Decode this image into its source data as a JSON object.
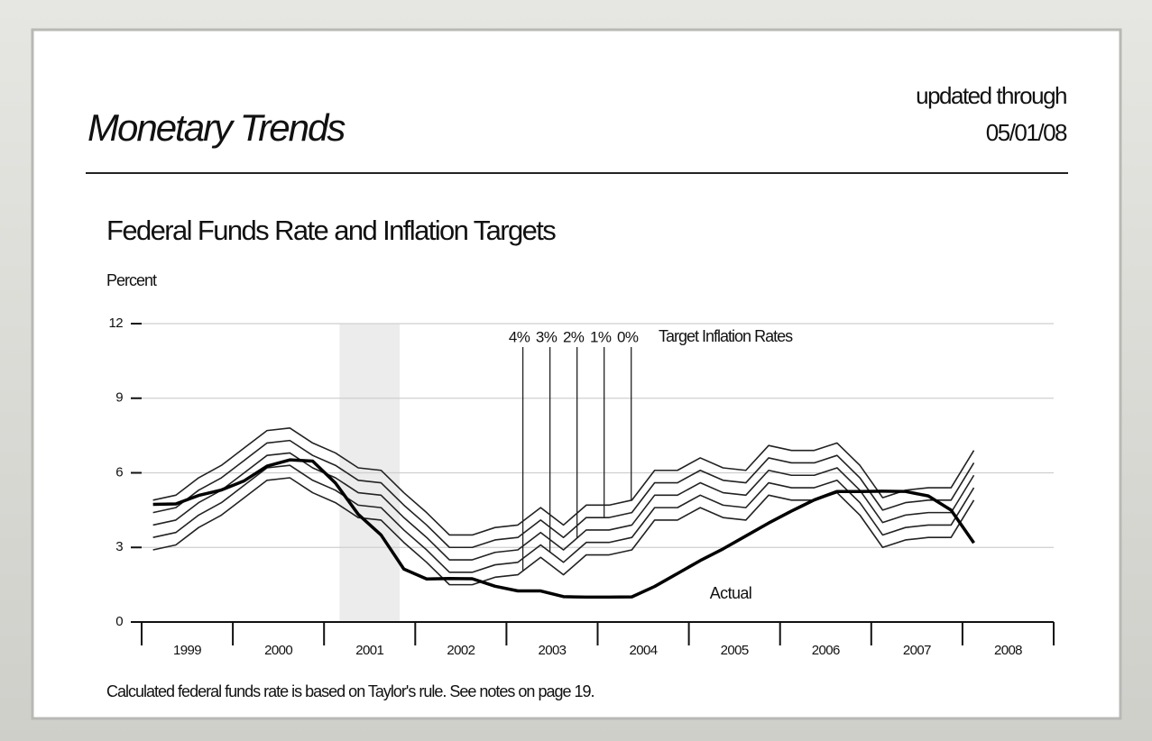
{
  "header": {
    "title": "Monetary Trends",
    "updated_label": "updated through",
    "date": "05/01/08"
  },
  "chart_data": {
    "type": "line",
    "title": "Federal Funds Rate and Inflation Targets",
    "y_label": "Percent",
    "legend_title": "Target Inflation Rates",
    "footnote": "Calculated federal funds rate is based on Taylor's rule. See notes on page 19.",
    "x": [
      1999.125,
      1999.375,
      1999.625,
      1999.875,
      2000.125,
      2000.375,
      2000.625,
      2000.875,
      2001.125,
      2001.375,
      2001.625,
      2001.875,
      2002.125,
      2002.375,
      2002.625,
      2002.875,
      2003.125,
      2003.375,
      2003.625,
      2003.875,
      2004.125,
      2004.375,
      2004.625,
      2004.875,
      2005.125,
      2005.375,
      2005.625,
      2005.875,
      2006.125,
      2006.375,
      2006.625,
      2006.875,
      2007.125,
      2007.375,
      2007.625,
      2007.875,
      2008.125
    ],
    "series": [
      {
        "name": "4%",
        "color": "#222222",
        "values": [
          2.9,
          3.1,
          3.8,
          4.3,
          5.0,
          5.7,
          5.8,
          5.2,
          4.8,
          4.2,
          4.1,
          3.2,
          2.4,
          1.5,
          1.5,
          1.8,
          1.9,
          2.6,
          1.9,
          2.7,
          2.7,
          2.9,
          4.1,
          4.1,
          4.6,
          4.2,
          4.1,
          5.1,
          4.9,
          4.9,
          5.2,
          4.3,
          3.0,
          3.3,
          3.4,
          3.4,
          4.9
        ]
      },
      {
        "name": "3%",
        "color": "#222222",
        "values": [
          3.4,
          3.6,
          4.3,
          4.8,
          5.5,
          6.2,
          6.3,
          5.7,
          5.3,
          4.7,
          4.6,
          3.7,
          2.9,
          2.0,
          2.0,
          2.3,
          2.4,
          3.1,
          2.4,
          3.2,
          3.2,
          3.4,
          4.6,
          4.6,
          5.1,
          4.7,
          4.6,
          5.6,
          5.4,
          5.4,
          5.7,
          4.8,
          3.5,
          3.8,
          3.9,
          3.9,
          5.4
        ]
      },
      {
        "name": "2%",
        "color": "#222222",
        "values": [
          3.9,
          4.1,
          4.8,
          5.3,
          6.0,
          6.7,
          6.8,
          6.2,
          5.8,
          5.2,
          5.1,
          4.2,
          3.4,
          2.5,
          2.5,
          2.8,
          2.9,
          3.6,
          2.9,
          3.7,
          3.7,
          3.9,
          5.1,
          5.1,
          5.6,
          5.2,
          5.1,
          6.1,
          5.9,
          5.9,
          6.2,
          5.3,
          4.0,
          4.3,
          4.4,
          4.4,
          5.9
        ]
      },
      {
        "name": "1%",
        "color": "#222222",
        "values": [
          4.4,
          4.6,
          5.3,
          5.8,
          6.5,
          7.2,
          7.3,
          6.7,
          6.3,
          5.7,
          5.6,
          4.7,
          3.9,
          3.0,
          3.0,
          3.3,
          3.4,
          4.1,
          3.4,
          4.2,
          4.2,
          4.4,
          5.6,
          5.6,
          6.1,
          5.7,
          5.6,
          6.6,
          6.4,
          6.4,
          6.7,
          5.8,
          4.5,
          4.8,
          4.9,
          4.9,
          6.4
        ]
      },
      {
        "name": "0%",
        "color": "#222222",
        "values": [
          4.9,
          5.1,
          5.8,
          6.3,
          7.0,
          7.7,
          7.8,
          7.2,
          6.8,
          6.2,
          6.1,
          5.2,
          4.4,
          3.5,
          3.5,
          3.8,
          3.9,
          4.6,
          3.9,
          4.7,
          4.7,
          4.9,
          6.1,
          6.1,
          6.6,
          6.2,
          6.1,
          7.1,
          6.9,
          6.9,
          7.2,
          6.3,
          5.0,
          5.3,
          5.4,
          5.4,
          6.9
        ]
      },
      {
        "name": "Actual",
        "color": "#000000",
        "values": [
          4.73,
          4.75,
          5.09,
          5.31,
          5.68,
          6.27,
          6.52,
          6.47,
          5.59,
          4.33,
          3.5,
          2.13,
          1.73,
          1.75,
          1.74,
          1.44,
          1.25,
          1.25,
          1.02,
          1.0,
          1.0,
          1.01,
          1.43,
          1.95,
          2.47,
          2.94,
          3.46,
          3.98,
          4.46,
          4.91,
          5.25,
          5.25,
          5.26,
          5.25,
          5.07,
          4.5,
          3.18
        ]
      }
    ],
    "xlim": [
      1999,
      2009
    ],
    "xticks": [
      1999,
      2000,
      2001,
      2002,
      2003,
      2004,
      2005,
      2006,
      2007,
      2008,
      2009
    ],
    "year_labels": [
      1999,
      2000,
      2001,
      2002,
      2003,
      2004,
      2005,
      2006,
      2007,
      2008
    ],
    "ylim": [
      0,
      12
    ],
    "yticks": [
      0,
      3,
      6,
      9,
      12
    ],
    "grid": true,
    "shaded_x": [
      2001.17,
      2001.83
    ]
  }
}
